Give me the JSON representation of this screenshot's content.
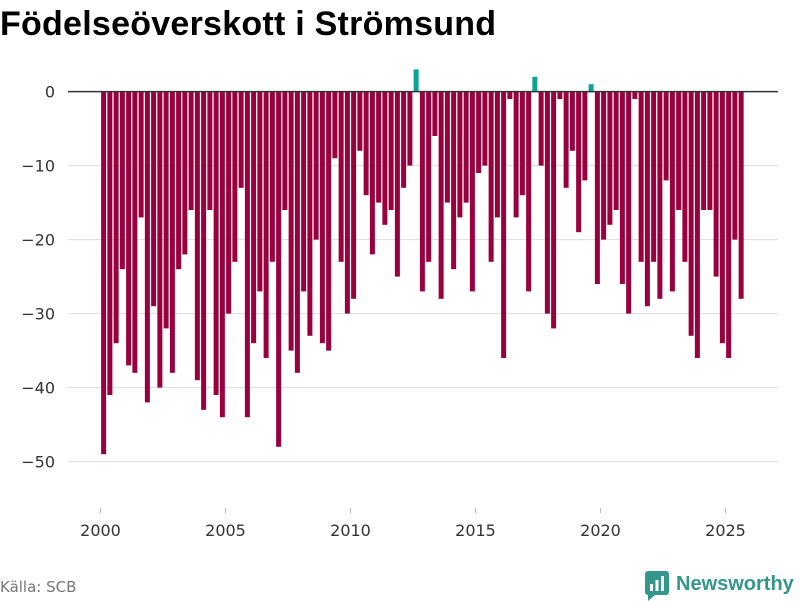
{
  "chart_data": {
    "type": "bar",
    "title": "Födelseöverskott i Strömsund",
    "x_start": 2000,
    "periods_per_year": 4,
    "values": [
      -49,
      -41,
      -34,
      -24,
      -37,
      -38,
      -17,
      -42,
      -29,
      -40,
      -32,
      -38,
      -24,
      -22,
      -16,
      -39,
      -43,
      -16,
      -41,
      -44,
      -30,
      -23,
      -13,
      -44,
      -34,
      -27,
      -36,
      -23,
      -48,
      -16,
      -35,
      -38,
      -27,
      -33,
      -20,
      -34,
      -35,
      -9,
      -23,
      -30,
      -28,
      -8,
      -14,
      -22,
      -15,
      -18,
      -16,
      -25,
      -13,
      -10,
      3,
      -27,
      -23,
      -6,
      -28,
      -15,
      -24,
      -17,
      -15,
      -27,
      -11,
      -10,
      -23,
      -17,
      -36,
      -1,
      -17,
      -14,
      -27,
      2,
      -10,
      -30,
      -32,
      -1,
      -13,
      -8,
      -19,
      -12,
      1,
      -26,
      -20,
      -18,
      -16,
      -26,
      -30,
      -1,
      -23,
      -29,
      -23,
      -28,
      -12,
      -27,
      -16,
      -23,
      -33,
      -36,
      -16,
      -16,
      -25,
      -34,
      -36,
      -20,
      -28
    ],
    "xlim": [
      1998.7,
      2027.1
    ],
    "ylim": [
      -56,
      4
    ],
    "x_ticks": [
      2000,
      2005,
      2010,
      2015,
      2020,
      2025
    ],
    "x_tick_labels": [
      "2000",
      "2005",
      "2010",
      "2015",
      "2020",
      "2025"
    ],
    "y_ticks": [
      0,
      -10,
      -20,
      -30,
      -40,
      -50
    ],
    "y_tick_labels": [
      "0",
      "−10",
      "−20",
      "−30",
      "−40",
      "−50"
    ],
    "grid": true,
    "colors": {
      "negative": "#98003e",
      "positive": "#0ea393",
      "grid": "#dddddd",
      "zero_line": "#333333"
    }
  },
  "footer": {
    "source": "Källa: SCB",
    "logo_text": "Newsworthy",
    "logo_icon": "newsworthy-logo-icon",
    "logo_color": "#35968b"
  }
}
